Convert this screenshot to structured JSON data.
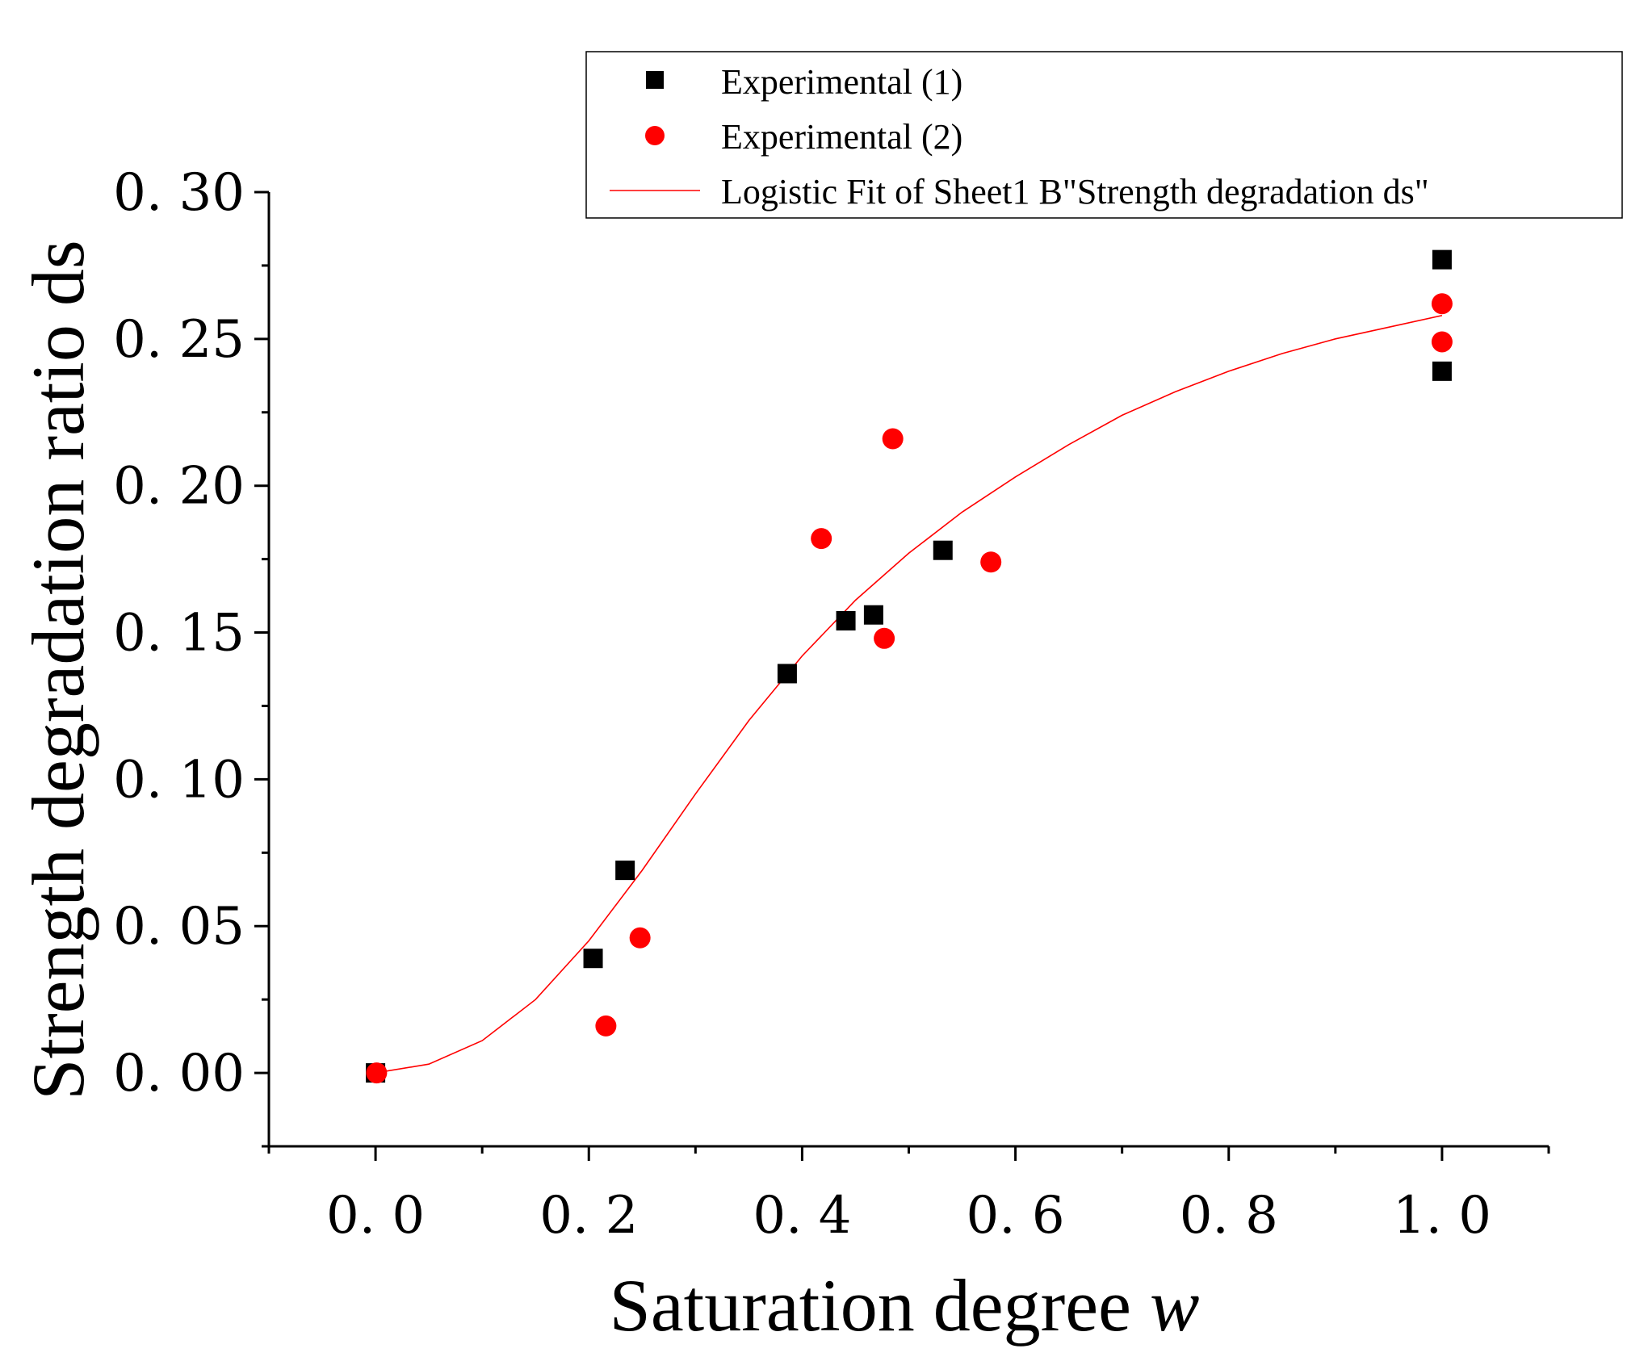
{
  "chart_data": {
    "type": "scatter",
    "xlabel": "Saturation degree",
    "xlabel_var": "w",
    "ylabel": "Strength degradation ratio ds",
    "xlim": [
      -0.1,
      1.1
    ],
    "ylim": [
      -0.025,
      0.3
    ],
    "x_ticks": [
      0.0,
      0.2,
      0.4,
      0.6,
      0.8,
      1.0
    ],
    "x_tick_labels": [
      "0. 0",
      "0. 2",
      "0. 4",
      "0. 6",
      "0. 8",
      "1. 0"
    ],
    "y_ticks": [
      0.0,
      0.05,
      0.1,
      0.15,
      0.2,
      0.25,
      0.3
    ],
    "y_tick_labels": [
      "0. 00",
      "0. 05",
      "0. 10",
      "0. 15",
      "0. 20",
      "0. 25",
      "0. 30"
    ],
    "grid": false,
    "legend_position": "top-right",
    "series": [
      {
        "name": "Experimental (1)",
        "marker": "square",
        "color": "#000000",
        "points": [
          {
            "x": 0.0,
            "y": 0.0
          },
          {
            "x": 0.204,
            "y": 0.039
          },
          {
            "x": 0.234,
            "y": 0.069
          },
          {
            "x": 0.386,
            "y": 0.136
          },
          {
            "x": 0.441,
            "y": 0.154
          },
          {
            "x": 0.467,
            "y": 0.156
          },
          {
            "x": 0.532,
            "y": 0.178
          },
          {
            "x": 1.0,
            "y": 0.277
          },
          {
            "x": 1.0,
            "y": 0.239
          }
        ]
      },
      {
        "name": "Experimental (2)",
        "marker": "circle",
        "color": "#ff0000",
        "points": [
          {
            "x": 0.001,
            "y": 0.0
          },
          {
            "x": 0.216,
            "y": 0.016
          },
          {
            "x": 0.248,
            "y": 0.046
          },
          {
            "x": 0.418,
            "y": 0.182
          },
          {
            "x": 0.477,
            "y": 0.148
          },
          {
            "x": 0.485,
            "y": 0.216
          },
          {
            "x": 0.577,
            "y": 0.174
          },
          {
            "x": 1.0,
            "y": 0.262
          },
          {
            "x": 1.0,
            "y": 0.249
          }
        ]
      },
      {
        "name": "Logistic Fit of Sheet1 B\"Strength degradation ds\"",
        "type": "line",
        "color": "#ff0000",
        "points": [
          {
            "x": 0.0,
            "y": 0.0
          },
          {
            "x": 0.05,
            "y": 0.003
          },
          {
            "x": 0.1,
            "y": 0.011
          },
          {
            "x": 0.15,
            "y": 0.025
          },
          {
            "x": 0.2,
            "y": 0.045
          },
          {
            "x": 0.25,
            "y": 0.069
          },
          {
            "x": 0.3,
            "y": 0.095
          },
          {
            "x": 0.35,
            "y": 0.12
          },
          {
            "x": 0.4,
            "y": 0.142
          },
          {
            "x": 0.45,
            "y": 0.161
          },
          {
            "x": 0.5,
            "y": 0.177
          },
          {
            "x": 0.55,
            "y": 0.191
          },
          {
            "x": 0.6,
            "y": 0.203
          },
          {
            "x": 0.65,
            "y": 0.214
          },
          {
            "x": 0.7,
            "y": 0.224
          },
          {
            "x": 0.75,
            "y": 0.232
          },
          {
            "x": 0.8,
            "y": 0.239
          },
          {
            "x": 0.85,
            "y": 0.245
          },
          {
            "x": 0.9,
            "y": 0.25
          },
          {
            "x": 0.95,
            "y": 0.254
          },
          {
            "x": 1.0,
            "y": 0.258
          }
        ]
      }
    ]
  }
}
